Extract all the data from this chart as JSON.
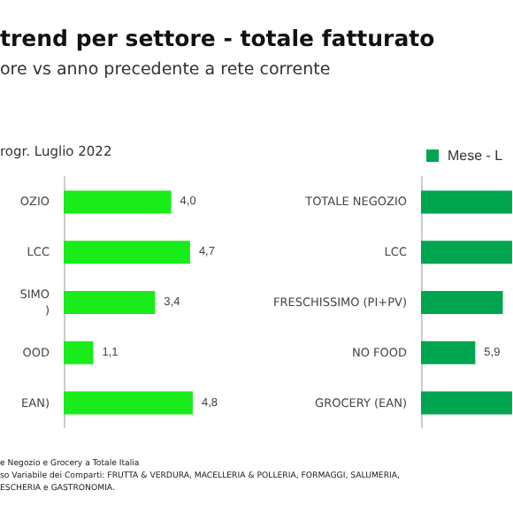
{
  "chart_data": [
    {
      "type": "bar",
      "title": "trend per settore - totale fatturato",
      "subtitle": "ore vs anno precedente a rete corrente",
      "orientation": "horizontal",
      "categories": [
        "OZIO",
        "LCC",
        "SIMO\n)",
        "OOD",
        "EAN)"
      ],
      "series": [
        {
          "color": "#1aeb1a",
          "values": [
            4.0,
            4.7,
            3.4,
            1.1,
            4.8
          ],
          "value_labels": [
            "4,0",
            "4,7",
            "3,4",
            "1,1",
            "4,8"
          ]
        }
      ],
      "tick_labels": "y",
      "grid": false,
      "legend": false,
      "annotations": [
        "rogr. Luglio 2022",
        "e Negozio  e  Grocery a Totale Italia",
        "so Variabile dei Comparti: FRUTTA & VERDURA, MACELLERIA & POLLERIA, FORMAGGI, SALUMERIA,",
        "ESCHERIA e GASTRONOMIA."
      ]
    },
    {
      "type": "bar",
      "orientation": "horizontal",
      "categories": [
        "TOTALE NEGOZIO",
        "LCC",
        "FRESCHISSIMO (PI+PV)",
        "NO FOOD",
        "GROCERY (EAN)"
      ],
      "series": [
        {
          "name": "Mese - L",
          "color": "#00a550",
          "values": [
            9.9,
            9.9,
            8.9,
            5.9,
            9.9
          ],
          "value_labels": [
            null,
            null,
            null,
            "5,9",
            null
          ]
        }
      ],
      "tick_labels": "y",
      "grid": false,
      "legend": "top left"
    }
  ]
}
